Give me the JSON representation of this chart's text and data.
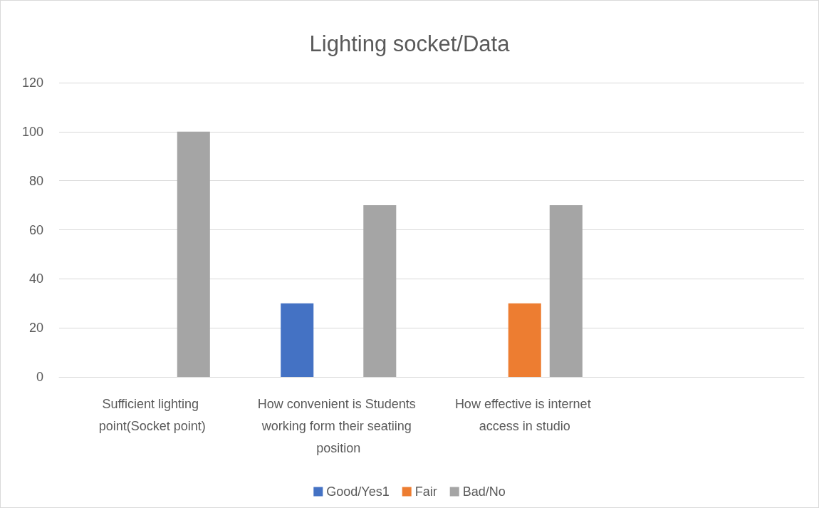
{
  "chart_data": {
    "type": "bar",
    "title": "Lighting socket/Data",
    "categories": [
      "Sufficient lighting point(Socket point)",
      "How convenient is Students working form their seatiing position",
      "How effective is internet access in studio",
      null
    ],
    "series": [
      {
        "name": "Good/Yes1",
        "color": "#4472c4",
        "values": [
          null,
          30,
          null,
          null
        ]
      },
      {
        "name": "Fair",
        "color": "#ed7d31",
        "values": [
          null,
          null,
          30,
          null
        ]
      },
      {
        "name": "Bad/No",
        "color": "#a5a5a5",
        "values": [
          100,
          70,
          70,
          null
        ]
      }
    ],
    "ylim": [
      0,
      120
    ],
    "yticks": [
      0,
      20,
      40,
      60,
      80,
      100,
      120
    ],
    "grid": "y",
    "legend": "bottom"
  }
}
